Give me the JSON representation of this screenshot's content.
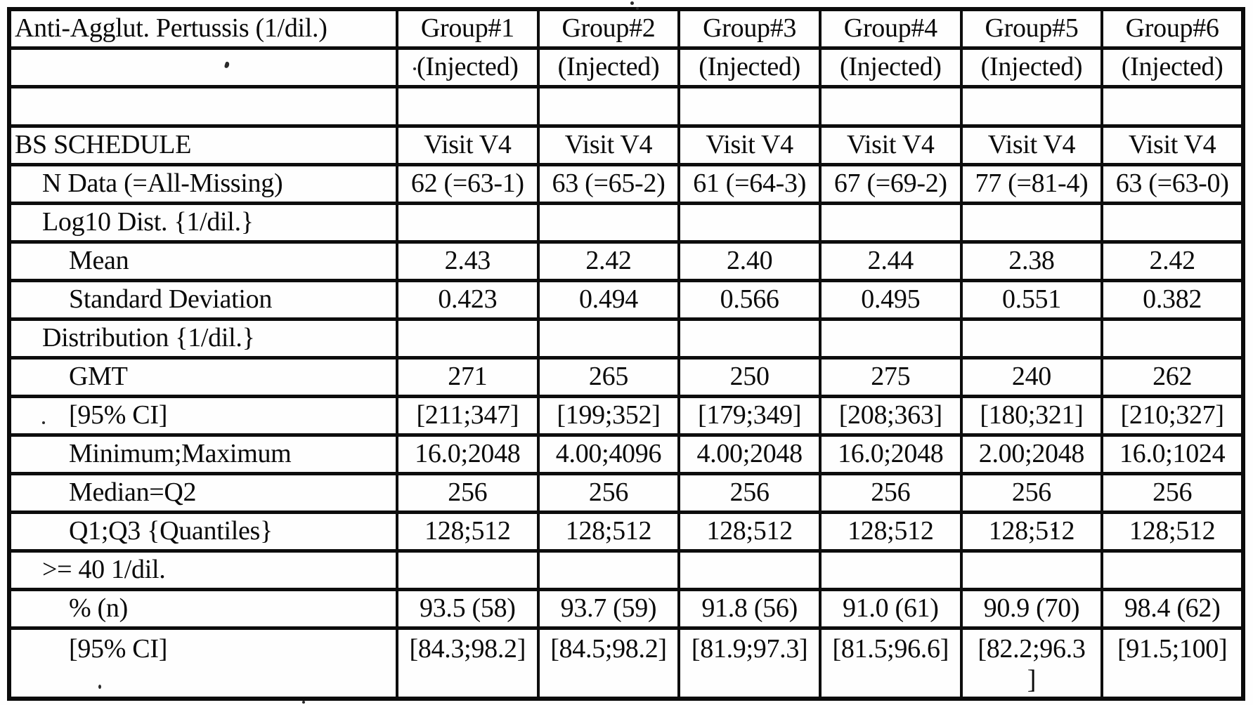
{
  "style": {
    "ink": "#0d0d0d",
    "paper": "#fefefe"
  },
  "table": {
    "title_cell": "Anti-Agglut. Pertussis (1/dil.)",
    "group_headers": [
      "Group#1",
      "Group#2",
      "Group#3",
      "Group#4",
      "Group#5",
      "Group#6"
    ],
    "group_subheaders": [
      "(Injected)",
      "(Injected)",
      "(Injected)",
      "(Injected)",
      "(Injected)",
      "(Injected)"
    ],
    "rows": [
      {
        "label": "",
        "indent": 0,
        "values": [
          "",
          "",
          "",
          "",
          "",
          ""
        ]
      },
      {
        "label": "BS SCHEDULE",
        "indent": 0,
        "values": [
          "Visit V4",
          "Visit V4",
          "Visit V4",
          "Visit V4",
          "Visit V4",
          "Visit V4"
        ]
      },
      {
        "label": "N Data (=All-Missing)",
        "indent": 1,
        "values": [
          "62 (=63-1)",
          "63 (=65-2)",
          "61 (=64-3)",
          "67 (=69-2)",
          "77 (=81-4)",
          "63 (=63-0)"
        ]
      },
      {
        "label": "Log10 Dist. {1/dil.}",
        "indent": 1,
        "values": [
          "",
          "",
          "",
          "",
          "",
          ""
        ]
      },
      {
        "label": "Mean",
        "indent": 2,
        "values": [
          "2.43",
          "2.42",
          "2.40",
          "2.44",
          "2.38",
          "2.42"
        ]
      },
      {
        "label": "Standard Deviation",
        "indent": 2,
        "values": [
          "0.423",
          "0.494",
          "0.566",
          "0.495",
          "0.551",
          "0.382"
        ]
      },
      {
        "label": "Distribution {1/dil.}",
        "indent": 1,
        "values": [
          "",
          "",
          "",
          "",
          "",
          ""
        ]
      },
      {
        "label": "GMT",
        "indent": 2,
        "values": [
          "271",
          "265",
          "250",
          "275",
          "240",
          "262"
        ]
      },
      {
        "label": "[95% CI]",
        "indent": 2,
        "values": [
          "[211;347]",
          "[199;352]",
          "[179;349]",
          "[208;363]",
          "[180;321]",
          "[210;327]"
        ]
      },
      {
        "label": "Minimum;Maximum",
        "indent": 2,
        "values": [
          "16.0;2048",
          "4.00;4096",
          "4.00;2048",
          "16.0;2048",
          "2.00;2048",
          "16.0;1024"
        ]
      },
      {
        "label": "Median=Q2",
        "indent": 2,
        "values": [
          "256",
          "256",
          "256",
          "256",
          "256",
          "256"
        ]
      },
      {
        "label": "Q1;Q3 {Quantiles}",
        "indent": 2,
        "values": [
          "128;512",
          "128;512",
          "128;512",
          "128;512",
          "128;512",
          "128;512"
        ]
      },
      {
        "label": ">= 40 1/dil.",
        "indent": 1,
        "values": [
          "",
          "",
          "",
          "",
          "",
          ""
        ]
      },
      {
        "label": "% (n)",
        "indent": 2,
        "values": [
          "93.5 (58)",
          "93.7 (59)",
          "91.8 (56)",
          "91.0 (61)",
          "90.9 (70)",
          "98.4 (62)"
        ]
      },
      {
        "label": "[95% CI]",
        "indent": 2,
        "values": [
          "[84.3;98.2]",
          "[84.5;98.2]",
          "[81.9;97.3]",
          "[81.5;96.6]",
          "[82.2;96.3\n]",
          "[91.5;100]"
        ]
      }
    ]
  }
}
